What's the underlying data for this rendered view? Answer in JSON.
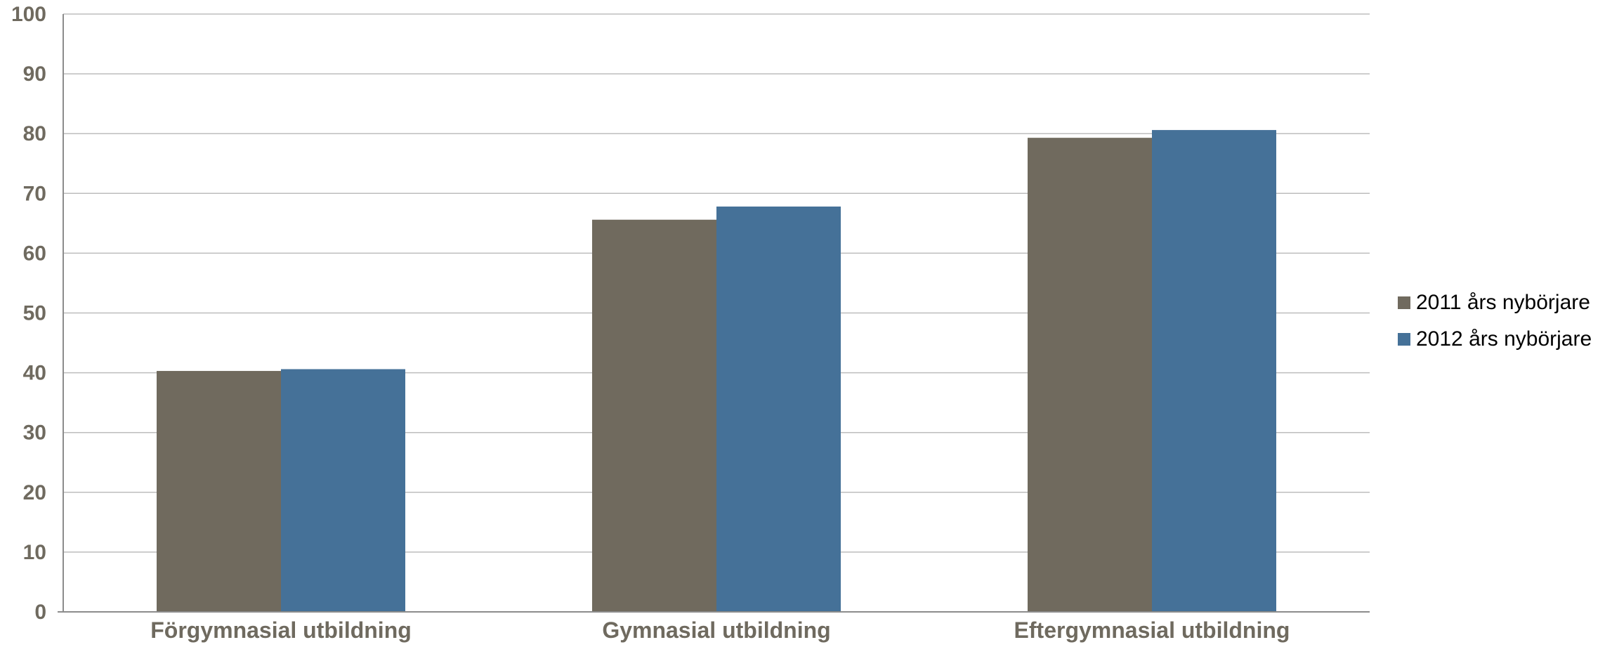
{
  "chart_data": {
    "type": "bar",
    "title": "",
    "xlabel": "",
    "ylabel": "",
    "categories": [
      "Förgymnasial utbildning",
      "Gymnasial utbildning",
      "Eftergymnasial utbildning"
    ],
    "series": [
      {
        "name": "2011 års nybörjare",
        "values": [
          40.3,
          65.6,
          79.3
        ],
        "color": "#706a5e"
      },
      {
        "name": "2012 års nybörjare",
        "values": [
          40.6,
          67.8,
          80.6
        ],
        "color": "#457198"
      }
    ],
    "ylim": [
      0,
      100
    ],
    "yticks": [
      "0",
      "10",
      "20",
      "30",
      "40",
      "50",
      "60",
      "70",
      "80",
      "90",
      "100"
    ],
    "grid": true,
    "legend_position": "right"
  }
}
